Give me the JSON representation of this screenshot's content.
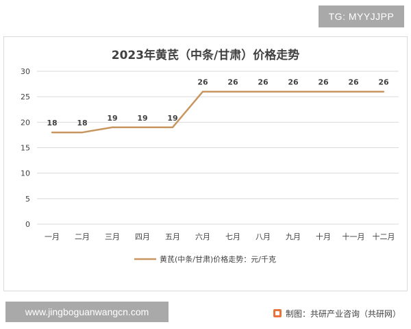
{
  "watermark_top": "TG: MYYJJPP",
  "watermark_bottom": "www.jingboguanwangcn.com",
  "source": "制图：共研产业咨询（共研网）",
  "colors": {
    "line": "#C9955F",
    "grid": "#D9D9D9",
    "accent": "#E8743B"
  },
  "chart_data": {
    "type": "line",
    "title": "2023年黄芪（中条/甘肃）价格走势",
    "categories": [
      "一月",
      "二月",
      "三月",
      "四月",
      "五月",
      "六月",
      "七月",
      "八月",
      "九月",
      "十月",
      "十一月",
      "十二月"
    ],
    "series": [
      {
        "name": "黄芪(中条/甘肃)价格走势：元/千克",
        "values": [
          18,
          18,
          19,
          19,
          19,
          26,
          26,
          26,
          26,
          26,
          26,
          26
        ]
      }
    ],
    "ylim": [
      0,
      30
    ],
    "yticks": [
      0,
      5,
      10,
      15,
      20,
      25,
      30
    ],
    "grid": true,
    "legend": "bottom",
    "data_labels": true
  }
}
